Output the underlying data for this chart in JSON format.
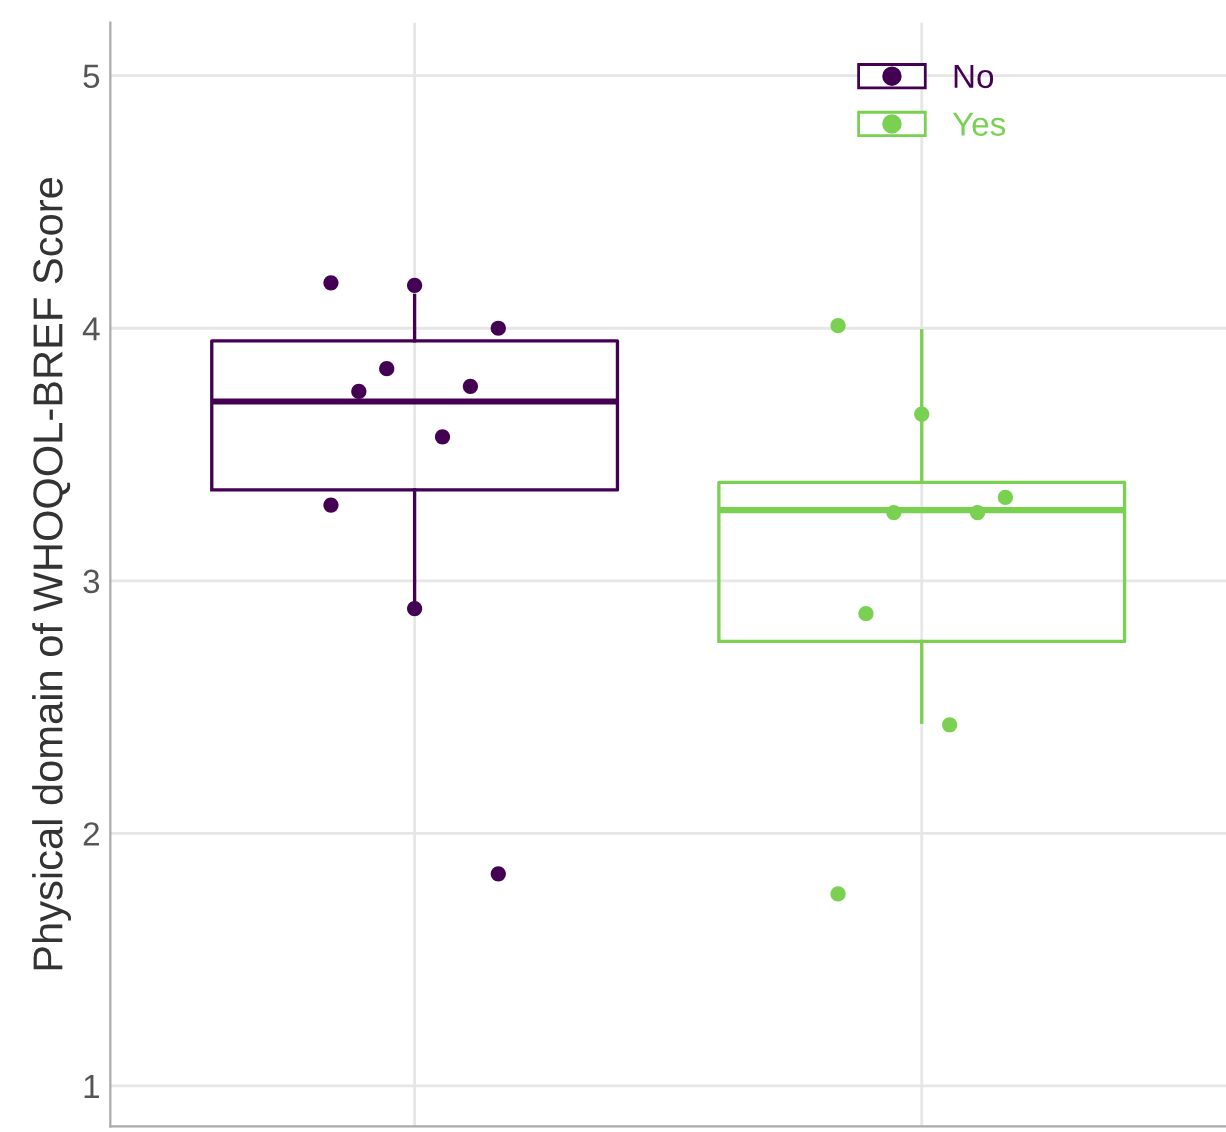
{
  "chart_data": {
    "type": "box",
    "ylabel": "Physical domain of WHOQOL-BREF Score",
    "categories": [
      null,
      null
    ],
    "series": [
      {
        "name": "No",
        "color": "#440154",
        "boxes": [
          {
            "low": 2.87,
            "q1": 3.36,
            "median": 3.71,
            "q3": 3.95,
            "high": 4.13
          },
          null
        ]
      },
      {
        "name": "Yes",
        "color": "#7ad151",
        "boxes": [
          null,
          {
            "low": 2.44,
            "q1": 2.76,
            "median": 3.28,
            "q3": 3.39,
            "high": 3.99
          }
        ]
      },
      {
        "type": "scatter",
        "colors": [
          "#440154",
          "#7ad151"
        ],
        "values": [
          4.18,
          4.01
        ]
      },
      {
        "type": "scatter",
        "colors": [
          "#440154",
          "#7ad151"
        ],
        "values": [
          4.17,
          3.66
        ]
      },
      {
        "type": "scatter",
        "colors": [
          "#440154",
          "#7ad151"
        ],
        "values": [
          4.0,
          3.33
        ]
      },
      {
        "type": "scatter",
        "colors": [
          "#440154",
          "#7ad151"
        ],
        "values": [
          3.84,
          3.27
        ]
      },
      {
        "type": "scatter",
        "colors": [
          "#440154",
          "#7ad151"
        ],
        "values": [
          3.77,
          3.27
        ]
      },
      {
        "type": "scatter",
        "colors": [
          "#440154",
          "#7ad151"
        ],
        "values": [
          3.75,
          2.87
        ]
      },
      {
        "type": "scatter",
        "colors": [
          "#440154",
          "#7ad151"
        ],
        "values": [
          3.57,
          2.43
        ]
      },
      {
        "type": "scatter",
        "colors": [
          "#440154",
          "#7ad151"
        ],
        "values": [
          3.3,
          1.76
        ]
      },
      {
        "type": "scatter",
        "colors": [
          "#440154",
          null
        ],
        "values": [
          2.89,
          null
        ]
      },
      {
        "type": "scatter",
        "colors": [
          "#440154",
          null
        ],
        "values": [
          1.84,
          null
        ]
      }
    ],
    "ylim": [
      0.84,
      5.21
    ],
    "yticks": [
      1,
      2,
      3,
      4,
      5
    ],
    "grid": true,
    "legend": "top right",
    "tick_labels": "y",
    "marker": "circle"
  }
}
